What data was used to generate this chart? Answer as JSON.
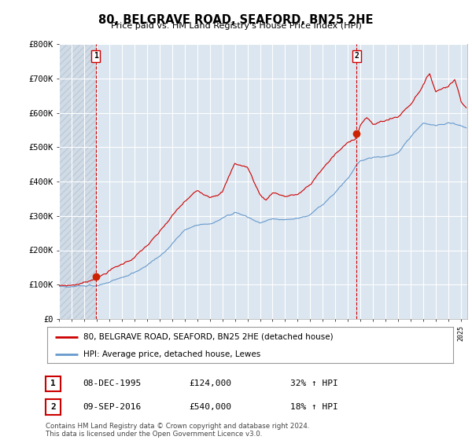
{
  "title": "80, BELGRAVE ROAD, SEAFORD, BN25 2HE",
  "subtitle": "Price paid vs. HM Land Registry's House Price Index (HPI)",
  "background_color": "#ffffff",
  "plot_bg_color": "#dce6f0",
  "grid_color": "#ffffff",
  "hpi_color": "#6699cc",
  "price_color": "#cc0000",
  "dashed_line_color": "#cc0000",
  "ylim": [
    0,
    800000
  ],
  "yticks": [
    0,
    100000,
    200000,
    300000,
    400000,
    500000,
    600000,
    700000,
    800000
  ],
  "ytick_labels": [
    "£0",
    "£100K",
    "£200K",
    "£300K",
    "£400K",
    "£500K",
    "£600K",
    "£700K",
    "£800K"
  ],
  "sale1_year": 1995.93,
  "sale1_price": 124000,
  "sale2_year": 2016.69,
  "sale2_price": 540000,
  "legend_entries": [
    "80, BELGRAVE ROAD, SEAFORD, BN25 2HE (detached house)",
    "HPI: Average price, detached house, Lewes"
  ],
  "table_entries": [
    {
      "num": "1",
      "date": "08-DEC-1995",
      "price": "£124,000",
      "hpi": "32% ↑ HPI"
    },
    {
      "num": "2",
      "date": "09-SEP-2016",
      "price": "£540,000",
      "hpi": "18% ↑ HPI"
    }
  ],
  "footer": "Contains HM Land Registry data © Crown copyright and database right 2024.\nThis data is licensed under the Open Government Licence v3.0.",
  "xmin": 1993.0,
  "xmax": 2025.5
}
